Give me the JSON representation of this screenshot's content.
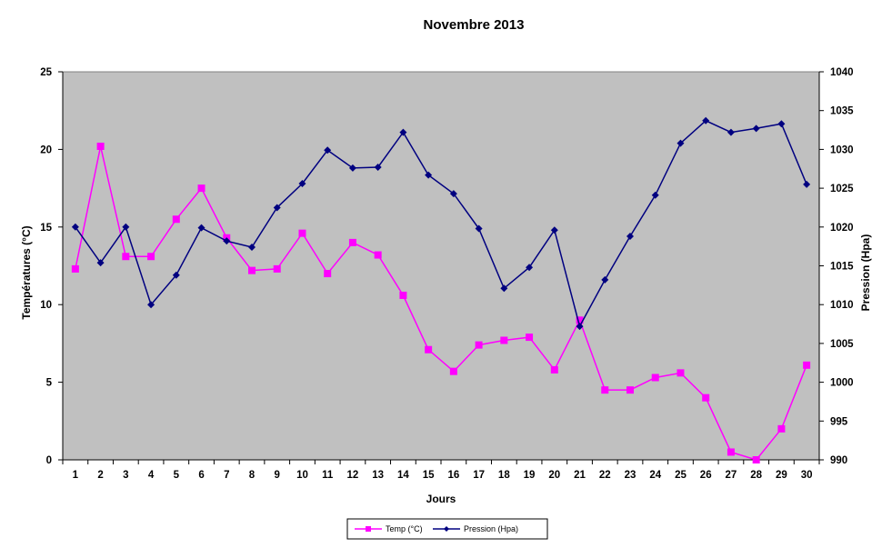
{
  "chart_data": {
    "type": "line",
    "title": "Novembre 2013",
    "xlabel": "Jours",
    "ylabel_left": "Températures  (°C)",
    "ylabel_right": "Pression  (Hpa)",
    "categories": [
      "1",
      "2",
      "3",
      "4",
      "5",
      "6",
      "7",
      "8",
      "9",
      "10",
      "11",
      "12",
      "13",
      "14",
      "15",
      "16",
      "17",
      "18",
      "19",
      "20",
      "21",
      "22",
      "23",
      "24",
      "25",
      "26",
      "27",
      "28",
      "29",
      "30"
    ],
    "ylim_left": [
      0,
      25
    ],
    "yticks_left": [
      "0",
      "5",
      "10",
      "15",
      "20",
      "25"
    ],
    "ylim_right": [
      990,
      1040
    ],
    "yticks_right": [
      "990",
      "995",
      "1000",
      "1005",
      "1010",
      "1015",
      "1020",
      "1025",
      "1030",
      "1035",
      "1040"
    ],
    "background": "#c0c0c0",
    "legend_position": "bottom",
    "series": [
      {
        "name": "Temp (°C)",
        "axis": "left",
        "color": "#ff00ff",
        "marker": "square",
        "values": [
          12.3,
          20.2,
          13.1,
          13.1,
          15.5,
          17.5,
          14.3,
          12.2,
          12.3,
          14.6,
          12.0,
          14.0,
          13.2,
          10.6,
          7.1,
          5.7,
          7.4,
          7.7,
          7.9,
          5.8,
          9.0,
          4.5,
          4.5,
          5.3,
          5.6,
          4.0,
          0.5,
          0.0,
          2.0,
          6.1
        ]
      },
      {
        "name": "Pression (Hpa)",
        "axis": "right",
        "color": "#000080",
        "marker": "diamond",
        "values": [
          1020,
          1015.4,
          1020,
          1010,
          1013.8,
          1019.9,
          1018.2,
          1017.4,
          1022.5,
          1025.6,
          1029.9,
          1027.6,
          1027.7,
          1032.2,
          1026.7,
          1024.3,
          1019.8,
          1012.1,
          1014.8,
          1019.6,
          1007.2,
          1013.2,
          1018.8,
          1024.1,
          1030.8,
          1033.7,
          1032.2,
          1032.7,
          1033.3,
          1025.5
        ]
      }
    ]
  }
}
